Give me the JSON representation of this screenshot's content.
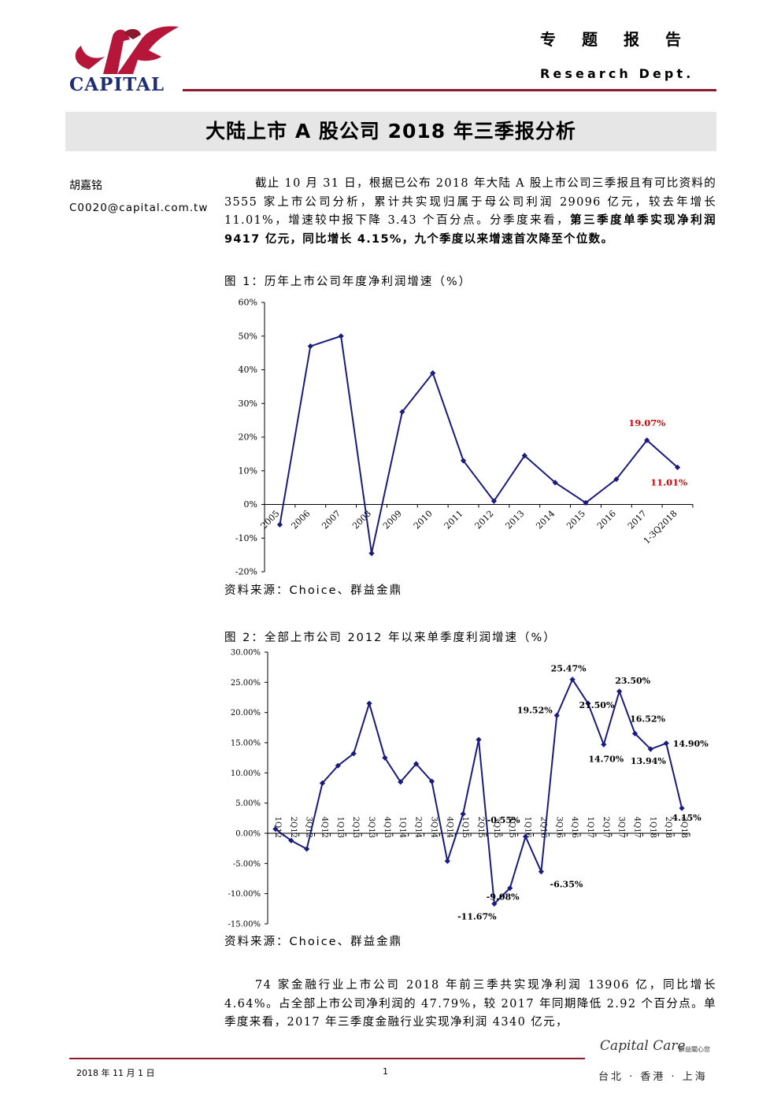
{
  "header": {
    "logo_text": "CAPITAL",
    "report_type": "专题报告",
    "dept": "Research Dept."
  },
  "title": "大陆上市 A 股公司 2018 年三季报分析",
  "author": {
    "name": "胡嘉铭",
    "email": "C0020@capital.com.tw"
  },
  "para1": {
    "normal": "截止 10 月 31 日，根据已公布 2018 年大陆 A 股上市公司三季报且有可比资料的 3555 家上市公司分析，累计共实现归属于母公司利润 29096 亿元，较去年增长 11.01%，增速较中报下降 3.43 个百分点。分季度来看，",
    "bold": "第三季度单季实现净利润 9417 亿元，同比增长 4.15%，九个季度以来增速首次降至个位数。"
  },
  "figure1": {
    "title": "图 1：历年上市公司年度净利润增速（%）",
    "source": "资料来源：Choice、群益金鼎"
  },
  "figure2": {
    "title": "图 2：全部上市公司 2012 年以来单季度利润增速（%）",
    "source": "资料来源：Choice、群益金鼎"
  },
  "chart_data": [
    {
      "type": "line",
      "title": "",
      "categories": [
        "2005",
        "2006",
        "2007",
        "2008",
        "2009",
        "2010",
        "2011",
        "2012",
        "2013",
        "2014",
        "2015",
        "2016",
        "2017",
        "1-3Q2018"
      ],
      "values": [
        -6,
        47,
        50,
        -14.5,
        27.5,
        39,
        13,
        1,
        14.5,
        6.5,
        0.5,
        7.5,
        19.07,
        11.01
      ],
      "ylim": [
        -20,
        60
      ],
      "yticks": [
        "-20%",
        "-10%",
        "0%",
        "10%",
        "20%",
        "30%",
        "40%",
        "50%",
        "60%"
      ],
      "data_labels": [
        {
          "index": 12,
          "text": "19.07%"
        },
        {
          "index": 13,
          "text": "11.01%"
        }
      ],
      "line_color": "#1a1a80",
      "label_color": "#e00000",
      "grid": false
    },
    {
      "type": "line",
      "title": "",
      "categories": [
        "1Q12",
        "2Q12",
        "3Q12",
        "4Q12",
        "1Q13",
        "2Q13",
        "3Q13",
        "4Q13",
        "1Q14",
        "2Q14",
        "3Q14",
        "4Q14",
        "1Q15",
        "2Q15",
        "3Q15",
        "4Q15",
        "1Q16",
        "2Q16",
        "3Q16",
        "4Q16",
        "1Q17",
        "2Q17",
        "3Q17",
        "4Q17",
        "1Q18",
        "2Q18",
        "3Q18"
      ],
      "values": [
        0.7,
        -1.2,
        -2.6,
        8.3,
        11.2,
        13.2,
        21.5,
        12.5,
        8.5,
        11.5,
        8.6,
        -4.6,
        3.2,
        15.5,
        -11.67,
        -9.08,
        -0.55,
        -6.35,
        19.52,
        25.47,
        21.5,
        14.7,
        23.5,
        16.52,
        13.94,
        14.9,
        4.15
      ],
      "ylim": [
        -15,
        30
      ],
      "yticks": [
        "-15.00%",
        "-10.00%",
        "-5.00%",
        "0.00%",
        "5.00%",
        "10.00%",
        "15.00%",
        "20.00%",
        "25.00%",
        "30.00%"
      ],
      "data_labels": [
        {
          "index": 14,
          "text": "-11.67%"
        },
        {
          "index": 15,
          "text": "-9.08%"
        },
        {
          "index": 16,
          "text": "-0.55%"
        },
        {
          "index": 17,
          "text": "-6.35%"
        },
        {
          "index": 18,
          "text": "19.52%"
        },
        {
          "index": 19,
          "text": "25.47%"
        },
        {
          "index": 20,
          "text": "21.50%"
        },
        {
          "index": 21,
          "text": "14.70%"
        },
        {
          "index": 22,
          "text": "23.50%"
        },
        {
          "index": 23,
          "text": "16.52%"
        },
        {
          "index": 24,
          "text": "13.94%"
        },
        {
          "index": 25,
          "text": "14.90%"
        },
        {
          "index": 26,
          "text": "4.15%"
        }
      ],
      "line_color": "#1a1a80",
      "label_color": "#000000",
      "grid": false
    }
  ],
  "para2": "74 家金融行业上市公司 2018 年前三季共实现净利润 13906 亿，同比增长 4.64%。占全部上市公司净利润的 47.79%，较 2017 年同期降低 2.92 个百分点。单季度来看，2017 年三季度金融行业实现净利润 4340 亿元，",
  "footer": {
    "date": "2018 年 11 月 1 日",
    "page": "1",
    "brand": "Capital Care",
    "brand_cn": "群益關心您",
    "cities": "台北 · 香港 · 上海"
  }
}
